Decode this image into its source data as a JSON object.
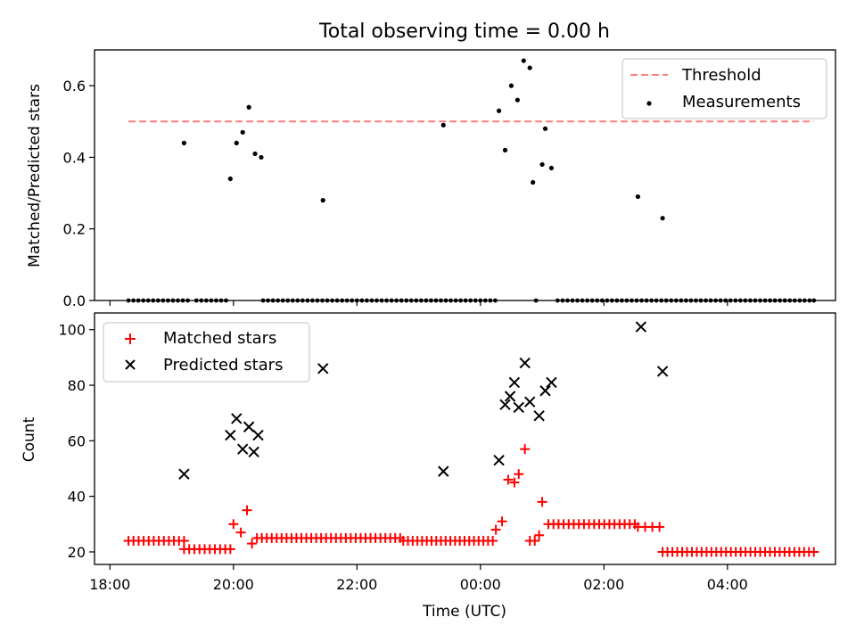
{
  "chart_data": [
    {
      "type": "scatter",
      "title": "Total observing time = 0.00 h",
      "xlabel": "",
      "ylabel": "Matched/Predicted stars",
      "x_unit": "hours UTC, continuing past midnight (24 = 00:00 next day)",
      "xlim": [
        17.75,
        29.75
      ],
      "ylim": [
        0,
        0.7
      ],
      "xticks": [
        18,
        20,
        22,
        24,
        26,
        28
      ],
      "xtick_labels": [
        "18:00",
        "20:00",
        "22:00",
        "00:00",
        "02:00",
        "04:00"
      ],
      "yticks": [
        0.0,
        0.2,
        0.4,
        0.6
      ],
      "ytick_labels": [
        "0.0",
        "0.2",
        "0.4",
        "0.6"
      ],
      "grid": false,
      "legend_position": "top-right",
      "threshold": {
        "name": "Threshold",
        "value": 0.5,
        "x_range": [
          18.3,
          29.4
        ],
        "color": "#ff7f7f",
        "style": "dashed"
      },
      "series": [
        {
          "name": "Measurements",
          "marker": "dot",
          "color": "#000000",
          "points": [
            [
              19.2,
              0.44
            ],
            [
              19.95,
              0.34
            ],
            [
              20.05,
              0.44
            ],
            [
              20.15,
              0.47
            ],
            [
              20.25,
              0.54
            ],
            [
              20.35,
              0.41
            ],
            [
              20.45,
              0.4
            ],
            [
              21.45,
              0.28
            ],
            [
              23.4,
              0.49
            ],
            [
              24.3,
              0.53
            ],
            [
              24.4,
              0.42
            ],
            [
              24.5,
              0.6
            ],
            [
              24.6,
              0.56
            ],
            [
              24.7,
              0.67
            ],
            [
              24.8,
              0.65
            ],
            [
              24.85,
              0.33
            ],
            [
              25.0,
              0.38
            ],
            [
              25.05,
              0.48
            ],
            [
              25.15,
              0.37
            ],
            [
              26.55,
              0.29
            ],
            [
              26.95,
              0.23
            ]
          ],
          "zero_points": [
            18.3,
            18.38,
            18.46,
            18.54,
            18.62,
            18.7,
            18.78,
            18.86,
            18.94,
            19.02,
            19.1,
            19.18,
            19.26,
            19.4,
            19.48,
            19.56,
            19.64,
            19.72,
            19.8,
            19.88,
            20.48,
            20.56,
            20.64,
            20.72,
            20.8,
            20.88,
            20.96,
            21.04,
            21.12,
            21.2,
            21.28,
            21.36,
            21.44,
            21.52,
            21.6,
            21.68,
            21.76,
            21.84,
            21.92,
            22.0,
            22.08,
            22.16,
            22.24,
            22.32,
            22.4,
            22.48,
            22.56,
            22.64,
            22.72,
            22.8,
            22.88,
            22.96,
            23.04,
            23.12,
            23.2,
            23.28,
            23.36,
            23.44,
            23.52,
            23.6,
            23.68,
            23.76,
            23.84,
            23.92,
            24.0,
            24.08,
            24.16,
            24.24,
            24.9,
            25.25,
            25.33,
            25.41,
            25.49,
            25.57,
            25.65,
            25.73,
            25.81,
            25.89,
            25.97,
            26.05,
            26.13,
            26.21,
            26.29,
            26.37,
            26.45,
            26.53,
            26.61,
            26.69,
            26.77,
            26.85,
            26.93,
            27.01,
            27.09,
            27.17,
            27.25,
            27.33,
            27.41,
            27.49,
            27.57,
            27.65,
            27.73,
            27.81,
            27.89,
            27.97,
            28.05,
            28.13,
            28.21,
            28.29,
            28.37,
            28.45,
            28.53,
            28.61,
            28.69,
            28.77,
            28.85,
            28.93,
            29.01,
            29.09,
            29.17,
            29.25,
            29.33,
            29.4
          ]
        }
      ]
    },
    {
      "type": "scatter",
      "title": "",
      "xlabel": "Time (UTC)",
      "ylabel": "Count",
      "x_unit": "hours UTC, continuing past midnight (24 = 00:00 next day)",
      "xlim": [
        17.75,
        29.75
      ],
      "ylim": [
        15.5,
        106
      ],
      "xticks": [
        18,
        20,
        22,
        24,
        26,
        28
      ],
      "xtick_labels": [
        "18:00",
        "20:00",
        "22:00",
        "00:00",
        "02:00",
        "04:00"
      ],
      "yticks": [
        20,
        40,
        60,
        80,
        100
      ],
      "ytick_labels": [
        "20",
        "40",
        "60",
        "80",
        "100"
      ],
      "grid": false,
      "legend_position": "top-left",
      "series": [
        {
          "name": "Matched stars",
          "marker": "plus",
          "color": "#ff0000",
          "segments": [
            {
              "x_start": 18.3,
              "x_end": 19.2,
              "count": 12,
              "y": 24
            },
            {
              "x_start": 19.2,
              "x_end": 19.95,
              "count": 10,
              "y": 21
            },
            {
              "x_start": 20.38,
              "x_end": 22.7,
              "count": 30,
              "y": 25
            },
            {
              "x_start": 22.75,
              "x_end": 24.2,
              "count": 20,
              "y": 24
            },
            {
              "x_start": 25.1,
              "x_end": 26.5,
              "count": 18,
              "y": 30
            },
            {
              "x_start": 26.55,
              "x_end": 26.9,
              "count": 4,
              "y": 29
            },
            {
              "x_start": 26.95,
              "x_end": 29.4,
              "count": 32,
              "y": 20
            }
          ],
          "points": [
            [
              20.0,
              30
            ],
            [
              20.12,
              27
            ],
            [
              20.22,
              35
            ],
            [
              20.3,
              23
            ],
            [
              24.25,
              28
            ],
            [
              24.35,
              31
            ],
            [
              24.45,
              46
            ],
            [
              24.55,
              45
            ],
            [
              24.62,
              48
            ],
            [
              24.72,
              57
            ],
            [
              24.8,
              24
            ],
            [
              24.88,
              24
            ],
            [
              24.95,
              26
            ],
            [
              25.0,
              38
            ]
          ]
        },
        {
          "name": "Predicted stars",
          "marker": "x",
          "color": "#000000",
          "points": [
            [
              19.2,
              48
            ],
            [
              19.95,
              62
            ],
            [
              20.05,
              68
            ],
            [
              20.15,
              57
            ],
            [
              20.25,
              65
            ],
            [
              20.33,
              56
            ],
            [
              20.4,
              62
            ],
            [
              21.45,
              86
            ],
            [
              23.4,
              49
            ],
            [
              24.3,
              53
            ],
            [
              24.4,
              73
            ],
            [
              24.48,
              76
            ],
            [
              24.55,
              81
            ],
            [
              24.62,
              72
            ],
            [
              24.72,
              88
            ],
            [
              24.8,
              74
            ],
            [
              24.95,
              69
            ],
            [
              25.05,
              78
            ],
            [
              25.15,
              81
            ],
            [
              26.6,
              101
            ],
            [
              26.95,
              85
            ]
          ]
        }
      ]
    }
  ]
}
